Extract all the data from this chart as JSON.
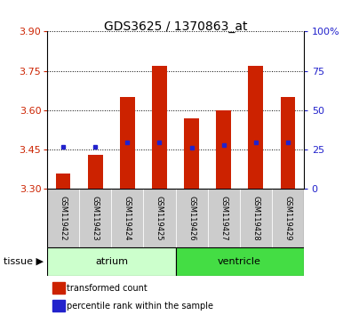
{
  "title": "GDS3625 / 1370863_at",
  "samples": [
    "GSM119422",
    "GSM119423",
    "GSM119424",
    "GSM119425",
    "GSM119426",
    "GSM119427",
    "GSM119428",
    "GSM119429"
  ],
  "bar_tops": [
    3.36,
    3.43,
    3.65,
    3.77,
    3.57,
    3.6,
    3.77,
    3.65
  ],
  "bar_bottom": 3.3,
  "blue_values": [
    3.462,
    3.462,
    3.478,
    3.478,
    3.458,
    3.468,
    3.478,
    3.478
  ],
  "ylim_left": [
    3.3,
    3.9
  ],
  "yticks_left": [
    3.3,
    3.45,
    3.6,
    3.75,
    3.9
  ],
  "ylim_right": [
    0,
    100
  ],
  "yticks_right": [
    0,
    25,
    50,
    75,
    100
  ],
  "ytick_labels_right": [
    "0",
    "25",
    "50",
    "75",
    "100%"
  ],
  "atrium_indices": [
    0,
    1,
    2,
    3
  ],
  "ventricle_indices": [
    4,
    5,
    6,
    7
  ],
  "bar_color": "#cc2200",
  "blue_color": "#2222cc",
  "left_tick_color": "#cc2200",
  "right_tick_color": "#2222cc",
  "atrium_color": "#ccffcc",
  "ventricle_color": "#44dd44",
  "sample_box_color": "#cccccc",
  "tissue_label": "tissue",
  "atrium_label": "atrium",
  "ventricle_label": "ventricle",
  "legend1": "transformed count",
  "legend2": "percentile rank within the sample",
  "grid_color": "#000000",
  "title_fontsize": 10,
  "axis_fontsize": 8,
  "sample_fontsize": 6,
  "tissue_fontsize": 8,
  "legend_fontsize": 7
}
